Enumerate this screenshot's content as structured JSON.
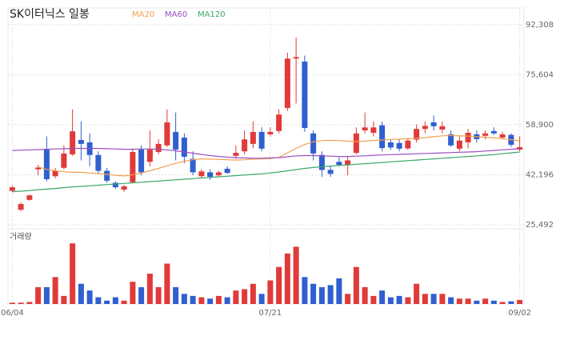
{
  "chart_data": {
    "type": "candlestick",
    "title": "SK이터닉스 일봉",
    "volume_label": "거래량",
    "up_color": "#e03a3a",
    "down_color": "#2f5fd0",
    "categories": [
      "06/04",
      null,
      null,
      null,
      null,
      null,
      null,
      null,
      null,
      null,
      null,
      null,
      null,
      null,
      null,
      null,
      null,
      null,
      null,
      null,
      null,
      null,
      null,
      null,
      null,
      null,
      null,
      null,
      null,
      null,
      "07/21",
      null,
      null,
      null,
      null,
      null,
      null,
      null,
      null,
      null,
      null,
      null,
      null,
      null,
      null,
      null,
      null,
      null,
      null,
      null,
      null,
      null,
      null,
      null,
      null,
      null,
      null,
      null,
      null,
      "09/02"
    ],
    "open": [
      36800,
      30500,
      33800,
      44000,
      50800,
      41700,
      44500,
      49000,
      53800,
      53000,
      48800,
      43500,
      39500,
      37200,
      39700,
      50600,
      46500,
      49800,
      52000,
      56500,
      54600,
      47500,
      41700,
      43000,
      42000,
      44200,
      48500,
      50000,
      52500,
      56500,
      55700,
      56800,
      64500,
      81000,
      80000,
      56000,
      48800,
      43800,
      46500,
      45500,
      49500,
      57000,
      56200,
      58700,
      53000,
      52800,
      51000,
      53900,
      57500,
      59700,
      57300,
      55700,
      50900,
      53000,
      55700,
      55200,
      56800,
      54600,
      55500,
      50600
    ],
    "high": [
      38500,
      33000,
      35600,
      45500,
      55000,
      44500,
      52000,
      64000,
      60000,
      56000,
      50000,
      44500,
      40000,
      38800,
      51000,
      52000,
      57000,
      54000,
      64000,
      63000,
      56000,
      50000,
      44000,
      44000,
      43500,
      45000,
      52000,
      57000,
      60000,
      58000,
      58000,
      64000,
      83000,
      88000,
      82000,
      57000,
      50000,
      45000,
      48000,
      48500,
      58000,
      63000,
      60000,
      60000,
      54000,
      54000,
      54500,
      59000,
      60000,
      62000,
      60000,
      57000,
      55000,
      57500,
      57000,
      57000,
      58000,
      56500,
      56000,
      55000
    ],
    "low": [
      36300,
      30000,
      33500,
      42000,
      40000,
      41000,
      44000,
      48500,
      47000,
      45000,
      42500,
      39500,
      37500,
      36500,
      39500,
      42000,
      45000,
      49000,
      51500,
      47000,
      46000,
      42000,
      41000,
      40500,
      41500,
      42500,
      47500,
      49000,
      51000,
      50000,
      55000,
      56000,
      63500,
      66000,
      56500,
      47000,
      41500,
      41500,
      45000,
      42000,
      49000,
      56000,
      55000,
      50000,
      50500,
      50000,
      50500,
      53000,
      56000,
      57000,
      56000,
      51500,
      50000,
      51000,
      53000,
      54000,
      55500,
      54000,
      51500,
      50000
    ],
    "close": [
      38000,
      32400,
      35300,
      44600,
      40700,
      43500,
      49300,
      56700,
      52500,
      48800,
      43500,
      40200,
      38000,
      38300,
      49800,
      43000,
      50600,
      52500,
      59700,
      50600,
      48200,
      43000,
      43300,
      41500,
      43000,
      42800,
      49500,
      54000,
      56500,
      50900,
      56500,
      62300,
      81000,
      81500,
      57800,
      49300,
      43800,
      42500,
      45500,
      47000,
      56000,
      58000,
      58000,
      51100,
      51300,
      50900,
      53600,
      57500,
      58500,
      58400,
      58400,
      52000,
      53600,
      56200,
      54100,
      56000,
      56000,
      55700,
      52200,
      51400
    ],
    "volume": [
      2,
      2,
      3,
      25,
      25,
      40,
      12,
      90,
      30,
      20,
      10,
      5,
      10,
      5,
      33,
      25,
      45,
      25,
      60,
      25,
      15,
      12,
      10,
      8,
      12,
      10,
      20,
      22,
      30,
      15,
      35,
      55,
      75,
      85,
      40,
      30,
      25,
      28,
      38,
      15,
      55,
      25,
      12,
      20,
      10,
      12,
      10,
      30,
      15,
      15,
      15,
      10,
      8,
      8,
      5,
      8,
      5,
      3,
      4,
      6
    ],
    "lines": [
      {
        "name": "MA20",
        "color": "#f0a050",
        "values": [
          null,
          null,
          null,
          44800,
          44000,
          43500,
          43200,
          43000,
          43000,
          42800,
          42600,
          42300,
          42000,
          41800,
          42200,
          42800,
          43500,
          44300,
          45200,
          46000,
          46700,
          47200,
          47500,
          47400,
          47300,
          47200,
          47100,
          47200,
          47400,
          47500,
          47600,
          48000,
          49500,
          51000,
          52300,
          53200,
          53600,
          53700,
          53600,
          53400,
          53300,
          53400,
          53600,
          53800,
          54000,
          54100,
          54200,
          54400,
          54600,
          54900,
          55200,
          55300,
          55200,
          55100,
          54900,
          54700,
          54500,
          54200,
          53900,
          53500
        ]
      },
      {
        "name": "MA60",
        "color": "#9b4fbf",
        "values": [
          50300,
          50400,
          50500,
          50600,
          50700,
          50800,
          50900,
          51000,
          51000,
          51000,
          51000,
          50900,
          50800,
          50700,
          50700,
          50800,
          50800,
          50700,
          50500,
          50200,
          49800,
          49400,
          49000,
          48600,
          48300,
          48100,
          47900,
          47800,
          47700,
          47700,
          47800,
          47900,
          48200,
          48500,
          48600,
          48600,
          48500,
          48400,
          48300,
          48300,
          48400,
          48500,
          48700,
          48800,
          48900,
          49000,
          49100,
          49200,
          49300,
          49400,
          49500,
          49600,
          49700,
          49800,
          49900,
          50100,
          50300,
          50500,
          50700,
          50900
        ]
      },
      {
        "name": "MA120",
        "color": "#3aa76b",
        "values": [
          36500,
          36700,
          36900,
          37200,
          37400,
          37600,
          37900,
          38100,
          38300,
          38500,
          38700,
          38900,
          39100,
          39300,
          39500,
          39700,
          39900,
          40100,
          40300,
          40500,
          40700,
          40900,
          41100,
          41300,
          41500,
          41700,
          41900,
          42100,
          42300,
          42500,
          42800,
          43100,
          43500,
          43900,
          44300,
          44600,
          44900,
          45100,
          45300,
          45500,
          45700,
          45900,
          46100,
          46300,
          46500,
          46700,
          46900,
          47100,
          47300,
          47500,
          47700,
          47900,
          48100,
          48300,
          48500,
          48700,
          48900,
          49200,
          49500,
          49800
        ]
      }
    ],
    "ylim": [
      24400,
      97900
    ],
    "yticks": [
      {
        "value": 25492,
        "label": "25,492"
      },
      {
        "value": 42196,
        "label": "42,196"
      },
      {
        "value": 58900,
        "label": "58,900"
      },
      {
        "value": 75604,
        "label": "75,604"
      },
      {
        "value": 92308,
        "label": "92,308"
      }
    ],
    "vlim": [
      0,
      95
    ],
    "grid": true
  }
}
